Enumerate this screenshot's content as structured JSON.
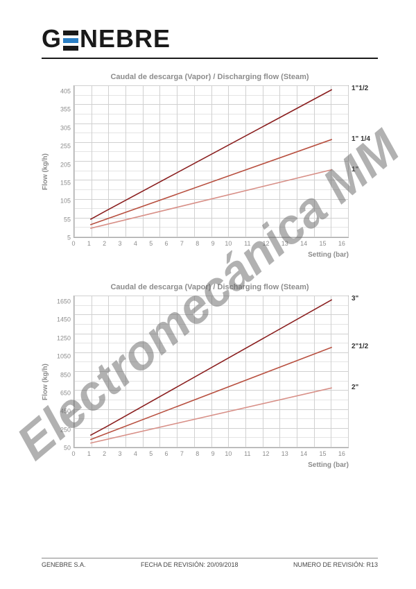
{
  "logo": {
    "text_left": "G",
    "text_right": "NEBRE"
  },
  "watermark": "Electromecánica MM",
  "chart1": {
    "type": "line",
    "title": "Caudal de descarga (Vapor) / Discharging flow (Steam)",
    "ylabel": "Flow (kg/h)",
    "xlabel": "Setting (bar)",
    "xlim": [
      0,
      17
    ],
    "xtick_step": 1,
    "ylim": [
      5,
      430
    ],
    "ytick_step": 50,
    "yticks": [
      5,
      55,
      105,
      155,
      205,
      255,
      305,
      355,
      405
    ],
    "xticks": [
      0,
      1,
      2,
      3,
      4,
      5,
      6,
      7,
      8,
      9,
      10,
      11,
      12,
      13,
      14,
      15,
      16
    ],
    "grid_color": "#d0d0d0",
    "background_color": "#ffffff",
    "minor_grid": 2,
    "series": [
      {
        "label": "1\"1/2",
        "color": "#8a1e1e",
        "width": 1.6,
        "points": [
          [
            1,
            55
          ],
          [
            2,
            80
          ],
          [
            16,
            420
          ]
        ]
      },
      {
        "label": "1\" 1/4",
        "color": "#b85040",
        "width": 1.6,
        "points": [
          [
            1,
            40
          ],
          [
            16,
            280
          ]
        ]
      },
      {
        "label": "1\"",
        "color": "#d89088",
        "width": 1.6,
        "points": [
          [
            1,
            30
          ],
          [
            16,
            195
          ]
        ]
      }
    ]
  },
  "chart2": {
    "type": "line",
    "title": "Caudal de descarga (Vapor) / Discharging flow (Steam)",
    "ylabel": "Flow (kg/h)",
    "xlabel": "Setting (bar)",
    "xlim": [
      0,
      17
    ],
    "xtick_step": 1,
    "ylim": [
      50,
      1800
    ],
    "ytick_step": 200,
    "yticks": [
      50,
      250,
      450,
      650,
      850,
      1050,
      1250,
      1450,
      1650
    ],
    "xticks": [
      0,
      1,
      2,
      3,
      4,
      5,
      6,
      7,
      8,
      9,
      10,
      11,
      12,
      13,
      14,
      15,
      16
    ],
    "grid_color": "#d0d0d0",
    "background_color": "#ffffff",
    "minor_grid": 2,
    "series": [
      {
        "label": "3\"",
        "color": "#8a1e1e",
        "width": 1.6,
        "points": [
          [
            1,
            190
          ],
          [
            2,
            290
          ],
          [
            16,
            1760
          ]
        ]
      },
      {
        "label": "2\"1/2",
        "color": "#b85040",
        "width": 1.6,
        "points": [
          [
            1,
            140
          ],
          [
            16,
            1210
          ]
        ]
      },
      {
        "label": "2\"",
        "color": "#d89088",
        "width": 1.6,
        "points": [
          [
            1,
            100
          ],
          [
            16,
            740
          ]
        ]
      }
    ]
  },
  "footer": {
    "company": "GENEBRE S.A.",
    "revision_date_label": "FECHA DE REVISIÓN: ",
    "revision_date": "20/09/2018",
    "revision_num_label": "NUMERO DE REVISIÓN: ",
    "revision_num": "R13"
  }
}
